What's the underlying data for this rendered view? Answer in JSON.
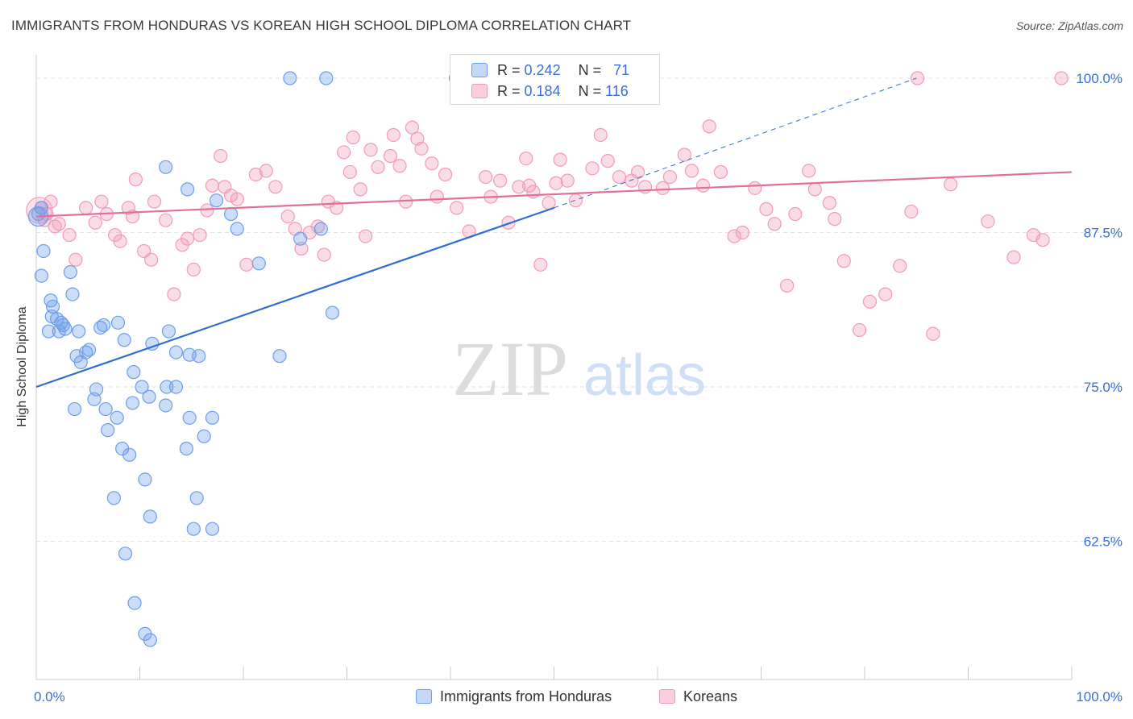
{
  "title": "IMMIGRANTS FROM HONDURAS VS KOREAN HIGH SCHOOL DIPLOMA CORRELATION CHART",
  "source": "Source: ZipAtlas.com",
  "watermark": {
    "zip": "ZIP",
    "atlas": "atlas"
  },
  "legend": {
    "rows": [
      {
        "r_label": "R =",
        "r_value": "0.242",
        "n_label": "N =",
        "n_value": "71"
      },
      {
        "r_label": "R =",
        "r_value": "0.184",
        "n_label": "N =",
        "n_value": "116"
      }
    ]
  },
  "chart_data": {
    "type": "scatter",
    "title": "IMMIGRANTS FROM HONDURAS VS KOREAN HIGH SCHOOL DIPLOMA CORRELATION CHART",
    "xlabel": "",
    "ylabel": "High School Diploma",
    "xlim": [
      0,
      100
    ],
    "ylim": [
      53,
      102
    ],
    "x_tick_labels": [
      "0.0%",
      "100.0%"
    ],
    "y_tick_labels": [
      "100.0%",
      "87.5%",
      "75.0%",
      "62.5%"
    ],
    "y_ticks": [
      100,
      87.5,
      75,
      62.5
    ],
    "grid": "horizontal dashed",
    "legend_position": "top-center",
    "colors": {
      "honduras": "#6d9eeb",
      "koreans": "#f19bb8",
      "honduras_line": "#2f6fd0",
      "koreans_line": "#e0709a"
    },
    "series": [
      {
        "name": "Immigrants from Honduras",
        "r": 0.242,
        "n": 71,
        "trend": {
          "x": [
            0,
            50
          ],
          "y": [
            75.0,
            89.5
          ],
          "dashed_extension": {
            "x": [
              50,
              85
            ],
            "y": [
              89.5,
              100
            ]
          }
        },
        "points": [
          [
            24.5,
            100
          ],
          [
            28,
            100
          ],
          [
            40.5,
            100
          ],
          [
            0.2,
            89
          ],
          [
            0.5,
            89.5
          ],
          [
            0.7,
            86
          ],
          [
            0.5,
            84
          ],
          [
            1.4,
            82
          ],
          [
            1.6,
            81.5
          ],
          [
            1.5,
            80.7
          ],
          [
            2,
            80.5
          ],
          [
            2.4,
            80.2
          ],
          [
            2.6,
            80
          ],
          [
            2.2,
            79.5
          ],
          [
            1.2,
            79.5
          ],
          [
            3.5,
            82.5
          ],
          [
            3.3,
            84.3
          ],
          [
            2.8,
            79.7
          ],
          [
            4.1,
            79.5
          ],
          [
            3.9,
            77.5
          ],
          [
            4.3,
            77
          ],
          [
            5.1,
            78
          ],
          [
            6.5,
            80
          ],
          [
            7.9,
            80.2
          ],
          [
            8.5,
            78.8
          ],
          [
            9.4,
            76.2
          ],
          [
            11.2,
            78.5
          ],
          [
            12.8,
            79.5
          ],
          [
            13.5,
            77.8
          ],
          [
            14.8,
            77.6
          ],
          [
            4.8,
            77.8
          ],
          [
            3.7,
            73.2
          ],
          [
            5.8,
            74.8
          ],
          [
            6.7,
            73.2
          ],
          [
            7.8,
            72.5
          ],
          [
            6.9,
            71.5
          ],
          [
            8.3,
            70
          ],
          [
            9,
            69.5
          ],
          [
            10.5,
            67.5
          ],
          [
            11,
            64.5
          ],
          [
            14.8,
            72.5
          ],
          [
            17,
            72.5
          ],
          [
            16.2,
            71
          ],
          [
            14.5,
            70
          ],
          [
            15.5,
            66
          ],
          [
            17,
            63.5
          ],
          [
            15.2,
            63.5
          ],
          [
            7.5,
            66
          ],
          [
            8.6,
            61.5
          ],
          [
            9.5,
            57.5
          ],
          [
            10.5,
            55
          ],
          [
            11,
            54.5
          ],
          [
            12.5,
            92.8
          ],
          [
            14.6,
            91
          ],
          [
            17.4,
            90.1
          ],
          [
            18.8,
            89
          ],
          [
            19.4,
            87.8
          ],
          [
            21.5,
            85
          ],
          [
            25.5,
            87
          ],
          [
            27.5,
            87.8
          ],
          [
            28.6,
            81
          ],
          [
            23.5,
            77.5
          ],
          [
            12.5,
            73.5
          ],
          [
            12.6,
            75
          ],
          [
            13.5,
            75
          ],
          [
            10.2,
            75
          ],
          [
            10.9,
            74.2
          ],
          [
            9.3,
            73.7
          ],
          [
            5.6,
            74
          ],
          [
            15.7,
            77.5
          ],
          [
            6.2,
            79.8
          ]
        ]
      },
      {
        "name": "Koreans",
        "r": 0.184,
        "n": 116,
        "trend": {
          "x": [
            0,
            100
          ],
          "y": [
            88.8,
            92.4
          ]
        },
        "points": [
          [
            85.1,
            100
          ],
          [
            99,
            100
          ],
          [
            0.5,
            89.5
          ],
          [
            1,
            89
          ],
          [
            1.4,
            90
          ],
          [
            1.8,
            88
          ],
          [
            0.8,
            88.5
          ],
          [
            2.2,
            88.2
          ],
          [
            3.2,
            87.3
          ],
          [
            3.8,
            85.3
          ],
          [
            4.8,
            89.5
          ],
          [
            5.7,
            88.3
          ],
          [
            6.3,
            90
          ],
          [
            6.8,
            89
          ],
          [
            7.6,
            87.3
          ],
          [
            8.1,
            86.8
          ],
          [
            8.9,
            89.5
          ],
          [
            9.3,
            88.8
          ],
          [
            9.6,
            91.8
          ],
          [
            10.4,
            86
          ],
          [
            11.1,
            85.3
          ],
          [
            11.4,
            90
          ],
          [
            12.5,
            88.5
          ],
          [
            13.3,
            82.5
          ],
          [
            14.1,
            86.5
          ],
          [
            14.6,
            87
          ],
          [
            15.2,
            84.5
          ],
          [
            15.8,
            87.3
          ],
          [
            16.5,
            89.3
          ],
          [
            17,
            91.3
          ],
          [
            17.8,
            93.7
          ],
          [
            18.2,
            91.2
          ],
          [
            18.8,
            90.5
          ],
          [
            19.4,
            90.2
          ],
          [
            20.3,
            84.9
          ],
          [
            21.2,
            92.2
          ],
          [
            22.2,
            92.5
          ],
          [
            23.1,
            91.2
          ],
          [
            24.3,
            88.8
          ],
          [
            25,
            87.8
          ],
          [
            25.6,
            86.2
          ],
          [
            26.4,
            87.5
          ],
          [
            27.2,
            88
          ],
          [
            27.8,
            85.7
          ],
          [
            28.2,
            90
          ],
          [
            29,
            89.5
          ],
          [
            29.7,
            94
          ],
          [
            30.3,
            92.4
          ],
          [
            30.6,
            95.2
          ],
          [
            31.3,
            91
          ],
          [
            31.8,
            87.2
          ],
          [
            32.3,
            94.2
          ],
          [
            33,
            92.8
          ],
          [
            34.2,
            93.7
          ],
          [
            34.5,
            95.4
          ],
          [
            35.1,
            92.9
          ],
          [
            35.7,
            90
          ],
          [
            36.3,
            96
          ],
          [
            36.8,
            95.1
          ],
          [
            37.2,
            94.3
          ],
          [
            38.2,
            93.1
          ],
          [
            38.7,
            90.4
          ],
          [
            39.5,
            92.2
          ],
          [
            40.6,
            89.5
          ],
          [
            41.8,
            87.6
          ],
          [
            43.4,
            92
          ],
          [
            43.9,
            90.4
          ],
          [
            44.8,
            91.7
          ],
          [
            45.6,
            88.3
          ],
          [
            46.6,
            91.2
          ],
          [
            47.3,
            93.5
          ],
          [
            47.6,
            91.3
          ],
          [
            48,
            90.8
          ],
          [
            48.7,
            84.9
          ],
          [
            49.5,
            89.9
          ],
          [
            50.2,
            91.5
          ],
          [
            50.6,
            93.4
          ],
          [
            51.3,
            91.7
          ],
          [
            52.1,
            90.1
          ],
          [
            53.7,
            92.7
          ],
          [
            54.5,
            95.4
          ],
          [
            55.2,
            93.3
          ],
          [
            56.3,
            92
          ],
          [
            57.5,
            91.7
          ],
          [
            58.1,
            92.4
          ],
          [
            58.8,
            91.2
          ],
          [
            60.5,
            91.1
          ],
          [
            61.2,
            92
          ],
          [
            62.6,
            93.8
          ],
          [
            63.3,
            92.5
          ],
          [
            64.4,
            91.3
          ],
          [
            65,
            96.1
          ],
          [
            66.1,
            92.4
          ],
          [
            67.4,
            87.2
          ],
          [
            68.2,
            87.5
          ],
          [
            69.4,
            91.1
          ],
          [
            70.5,
            89.4
          ],
          [
            71.3,
            88.2
          ],
          [
            72.5,
            83.2
          ],
          [
            73.3,
            89
          ],
          [
            74.6,
            92.5
          ],
          [
            75.2,
            91
          ],
          [
            76.6,
            89.9
          ],
          [
            77.1,
            88.6
          ],
          [
            78,
            85.2
          ],
          [
            79.5,
            79.6
          ],
          [
            80.5,
            81.9
          ],
          [
            82,
            82.5
          ],
          [
            83.4,
            84.8
          ],
          [
            84.5,
            89.2
          ],
          [
            86.6,
            79.3
          ],
          [
            88.3,
            91.4
          ],
          [
            91.9,
            88.4
          ],
          [
            94.4,
            85.5
          ],
          [
            96.3,
            87.3
          ],
          [
            97.2,
            86.9
          ]
        ]
      }
    ]
  },
  "bottom_legend": [
    {
      "label": "Immigrants from Honduras"
    },
    {
      "label": "Koreans"
    }
  ]
}
